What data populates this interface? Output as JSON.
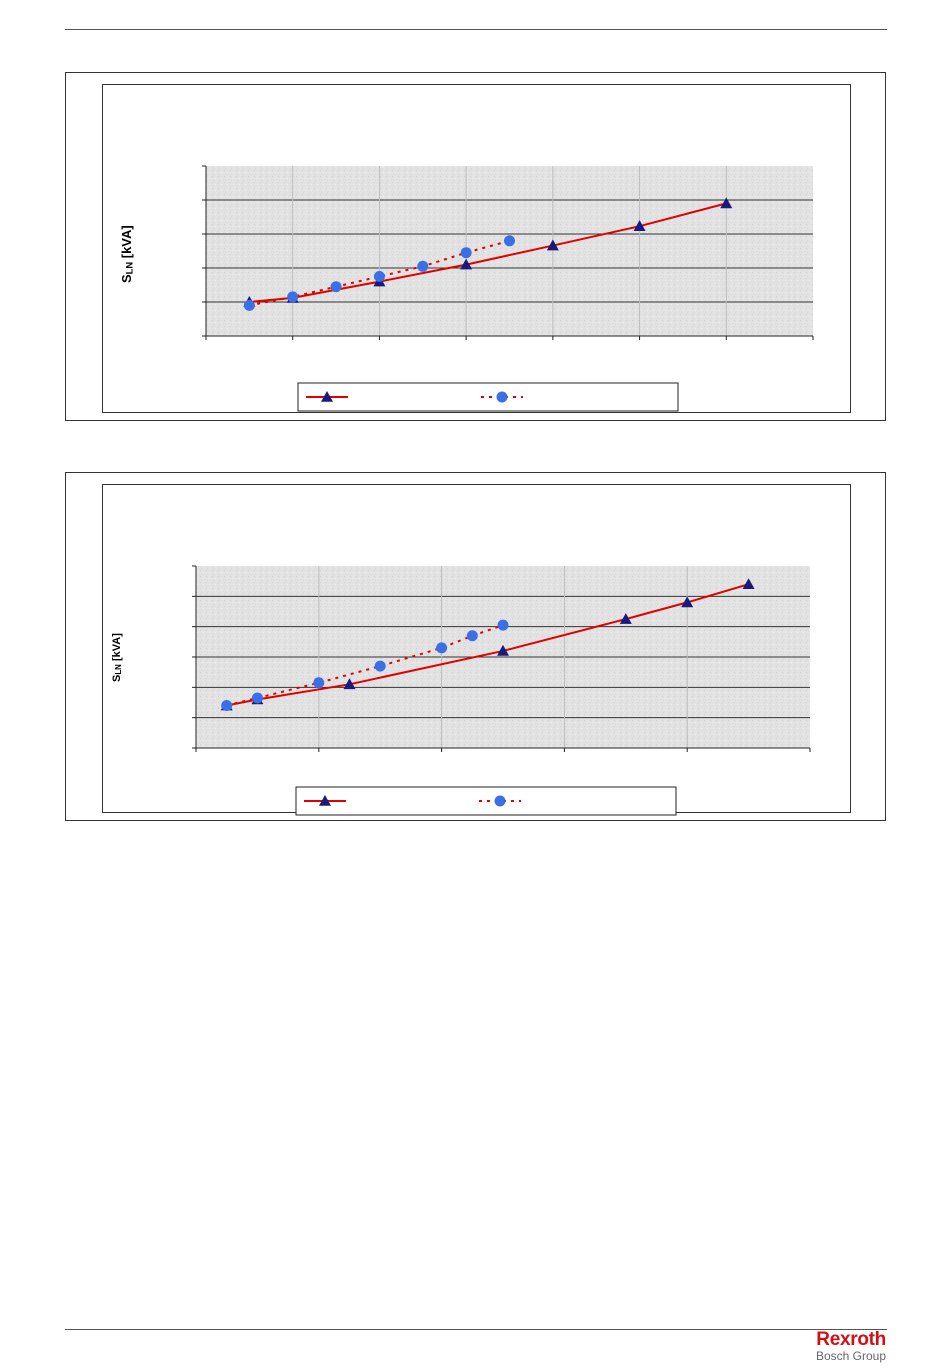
{
  "page": {
    "brand": {
      "name": "Rexroth",
      "subline": "Bosch Group"
    }
  },
  "chart_data": [
    {
      "type": "line",
      "ylabel_main": "S",
      "ylabel_sub": "LN",
      "ylabel_unit": " [kVA]",
      "grid": true,
      "legend_position": "bottom",
      "xlim": [
        0,
        14
      ],
      "ylim": [
        0,
        5
      ],
      "series": [
        {
          "marker": "triangle",
          "line": "solid",
          "color": "#e00000",
          "marker_color": "#1a1a7a",
          "points": [
            [
              1,
              1
            ],
            [
              2,
              1.12
            ],
            [
              4,
              1.6
            ],
            [
              6,
              2.1
            ],
            [
              8,
              2.66
            ],
            [
              10,
              3.23
            ],
            [
              12,
              3.9
            ]
          ]
        },
        {
          "marker": "circle",
          "line": "dotted",
          "color": "#e00000",
          "marker_color": "#3a6fe6",
          "points": [
            [
              1,
              0.9
            ],
            [
              2,
              1.15
            ],
            [
              3,
              1.45
            ],
            [
              4,
              1.75
            ],
            [
              5,
              2.05
            ],
            [
              6,
              2.45
            ],
            [
              7,
              2.8
            ]
          ]
        }
      ]
    },
    {
      "type": "line",
      "ylabel_main": "S",
      "ylabel_sub": "LN",
      "ylabel_unit": " [kVA]",
      "grid": true,
      "legend_position": "bottom",
      "xlim": [
        0,
        10
      ],
      "ylim": [
        0,
        6
      ],
      "series": [
        {
          "marker": "triangle",
          "line": "solid",
          "color": "#e00000",
          "marker_color": "#1a1a7a",
          "points": [
            [
              0.5,
              1.4
            ],
            [
              1,
              1.6
            ],
            [
              2.5,
              2.1
            ],
            [
              5,
              3.2
            ],
            [
              7,
              4.25
            ],
            [
              8,
              4.8
            ],
            [
              9,
              5.4
            ]
          ]
        },
        {
          "marker": "circle",
          "line": "dotted",
          "color": "#e00000",
          "marker_color": "#3a6fe6",
          "points": [
            [
              0.5,
              1.4
            ],
            [
              1,
              1.65
            ],
            [
              2,
              2.15
            ],
            [
              3,
              2.7
            ],
            [
              4,
              3.3
            ],
            [
              4.5,
              3.7
            ],
            [
              5,
              4.05
            ]
          ]
        }
      ]
    }
  ]
}
